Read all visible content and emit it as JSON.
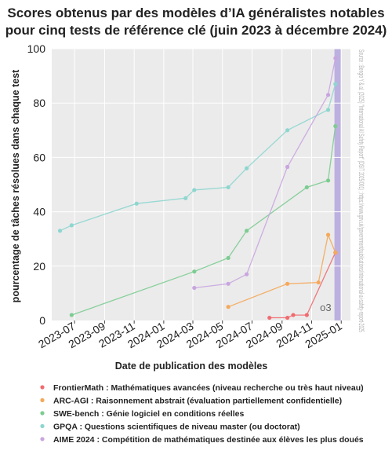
{
  "chart_data": {
    "type": "line",
    "title": "Scores obtenus par des modèles d’IA généralistes notables",
    "subtitle": "pour cinq tests de référence clé (juin 2023 à décembre 2024)",
    "xlabel": "Date de publication des modèles",
    "ylabel": "pourcentage de tâches résolues dans chaque test",
    "source": "Source : Bengio Y & al. (2025) \"International AI Safety Report\" (DSIT 2025/001) ; https://www.gov.uk/government/publications/international-ai-safety-report-2025",
    "ylim": [
      0,
      100
    ],
    "yticks": [
      0,
      20,
      40,
      60,
      80,
      100
    ],
    "xlim": [
      "2023-05-15",
      "2025-01-20"
    ],
    "xticks": [
      "2023-07",
      "2023-09",
      "2023-11",
      "2024-01",
      "2024-03",
      "2024-05",
      "2024-07",
      "2024-09",
      "2024-11",
      "2025-01"
    ],
    "grid": true,
    "background": "#ebebeb",
    "highlight": {
      "x_start": "2024-12-18",
      "x_end": "2024-12-31",
      "label": "o3",
      "color": "#b4a6de"
    },
    "legend_position": "bottom",
    "series": [
      {
        "name": "FrontierMath : Mathématiques avancées (niveau recherche ou très haut niveau)",
        "color": "#f06b70",
        "x": [
          "2024-08-06",
          "2024-09-12",
          "2024-09-24",
          "2024-10-22",
          "2024-12-20"
        ],
        "y": [
          1,
          1,
          2,
          2,
          25
        ]
      },
      {
        "name": "ARC-AGI : Raisonnement abstrait (évaluation partiellement confidentielle)",
        "color": "#f5a95a",
        "x": [
          "2024-05-13",
          "2024-09-12",
          "2024-11-15",
          "2024-12-05",
          "2024-12-20"
        ],
        "y": [
          5,
          13.5,
          14,
          31.5,
          25
        ]
      },
      {
        "name": "SWE-bench : Génie logiciel en conditions réelles",
        "color": "#7ccc91",
        "x": [
          "2023-06-25",
          "2024-03-04",
          "2024-05-13",
          "2024-06-20",
          "2024-10-22",
          "2024-12-05",
          "2024-12-20"
        ],
        "y": [
          2,
          18,
          23,
          33,
          49,
          51.5,
          71.5
        ]
      },
      {
        "name": "GPQA : Questions scientifiques de niveau master (ou doctorat)",
        "color": "#8ed6d0",
        "x": [
          "2023-06-01",
          "2023-06-25",
          "2023-11-06",
          "2024-02-15",
          "2024-03-04",
          "2024-05-13",
          "2024-06-20",
          "2024-09-12",
          "2024-12-05",
          "2024-12-20"
        ],
        "y": [
          33,
          35,
          43,
          45,
          48,
          49,
          56,
          70,
          77.5,
          87
        ]
      },
      {
        "name": "AIME 2024 : Compétition de mathématiques destinée aux élèves les plus doués",
        "color": "#c9a5e0",
        "x": [
          "2024-03-04",
          "2024-05-13",
          "2024-06-20",
          "2024-09-12",
          "2024-12-05",
          "2024-12-20"
        ],
        "y": [
          12,
          13.5,
          17,
          56.5,
          83,
          96.5
        ]
      }
    ]
  }
}
